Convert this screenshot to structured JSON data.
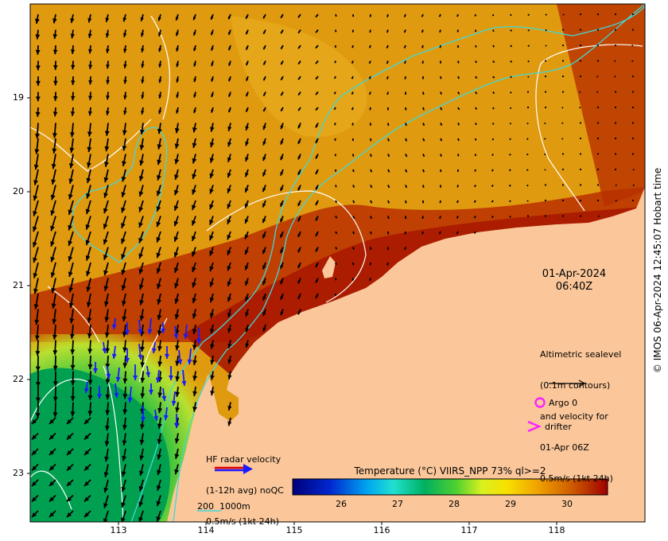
{
  "map": {
    "y_ticks": [
      "19",
      "20",
      "21",
      "22",
      "23"
    ],
    "x_ticks": [
      "113",
      "114",
      "115",
      "116",
      "117",
      "118"
    ],
    "timestamp": {
      "date": "01-Apr-2024",
      "time": "06:40Z"
    },
    "credit": "© IMOS 06-Apr-2024 12:45:07 Hobart time",
    "colors": {
      "land": "#fbc79a",
      "contour": "#40d8d8",
      "sealevel": "#ffffff",
      "arrow": "#000000",
      "hf_arrow": "#1a1aff",
      "marker": "#ff20ff"
    }
  },
  "legend": {
    "altimetry": [
      "Altimetric sealevel",
      "(0.1m contours)",
      "and velocity for",
      "01-Apr 06Z",
      "0.5m/s (1kt 24h)"
    ],
    "argo": "Argo 0",
    "drifter": "drifter",
    "hf_radar": [
      "HF radar velocity",
      "(1-12h avg) noQC",
      "0.5m/s (1kt 24h)"
    ],
    "isobaths": "200  1000m"
  },
  "colorbar": {
    "title": "Temperature (°C) VIIRS_NPP 73% ql>=2",
    "ticks": [
      "26",
      "27",
      "28",
      "29",
      "30"
    ],
    "range": [
      25,
      30.6
    ]
  }
}
